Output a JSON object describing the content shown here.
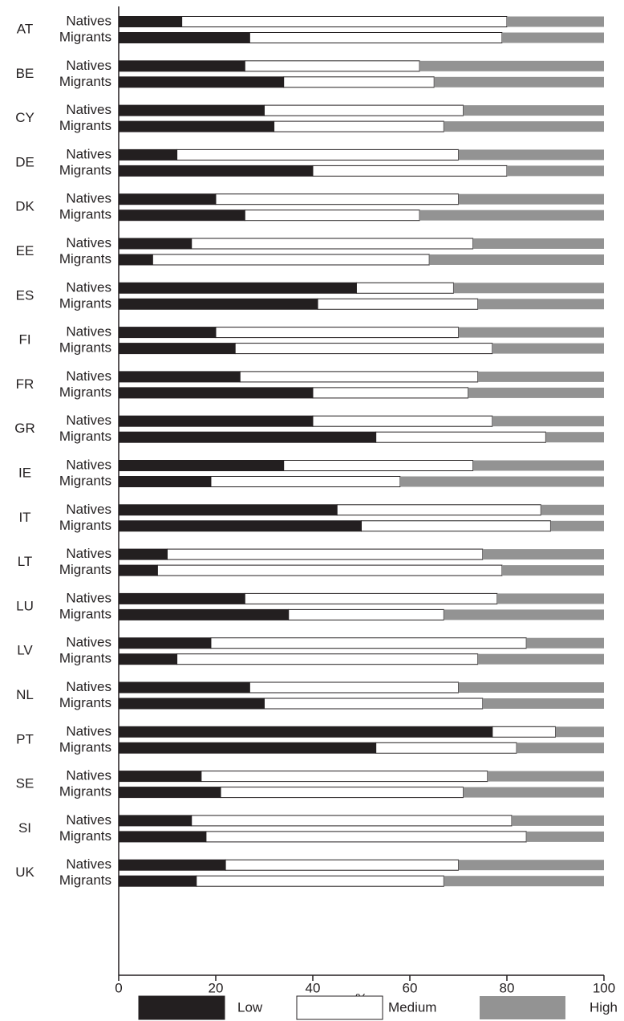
{
  "chart_data": {
    "type": "stacked-barh",
    "countries": [
      "AT",
      "BE",
      "CY",
      "DE",
      "DK",
      "EE",
      "ES",
      "FI",
      "FR",
      "GR",
      "IE",
      "IT",
      "LT",
      "LU",
      "LV",
      "NL",
      "PT",
      "SE",
      "SI",
      "UK"
    ],
    "categories": [
      "Natives",
      "Migrants",
      "Natives",
      "Migrants",
      "Natives",
      "Migrants",
      "Natives",
      "Migrants",
      "Natives",
      "Migrants",
      "Natives",
      "Migrants",
      "Natives",
      "Migrants",
      "Natives",
      "Migrants",
      "Natives",
      "Migrants",
      "Natives",
      "Migrants",
      "Natives",
      "Migrants",
      "Natives",
      "Migrants",
      "Natives",
      "Migrants",
      "Natives",
      "Migrants",
      "Natives",
      "Migrants",
      "Natives",
      "Migrants",
      "Natives",
      "Migrants",
      "Natives",
      "Migrants",
      "Natives",
      "Migrants",
      "Natives",
      "Migrants"
    ],
    "series": [
      {
        "name": "Low",
        "color": "#231f20",
        "values": [
          13,
          27,
          26,
          34,
          30,
          32,
          12,
          40,
          20,
          26,
          15,
          7,
          49,
          41,
          20,
          24,
          25,
          40,
          40,
          53,
          34,
          19,
          45,
          50,
          10,
          8,
          26,
          35,
          19,
          12,
          27,
          30,
          77,
          53,
          17,
          21,
          15,
          18,
          22,
          16
        ]
      },
      {
        "name": "Medium",
        "color": "#ffffff",
        "values": [
          67,
          52,
          36,
          31,
          41,
          35,
          58,
          40,
          50,
          36,
          58,
          57,
          20,
          33,
          50,
          53,
          49,
          32,
          37,
          35,
          39,
          39,
          42,
          39,
          65,
          71,
          52,
          32,
          65,
          62,
          43,
          45,
          13,
          29,
          59,
          50,
          66,
          66,
          48,
          51
        ]
      },
      {
        "name": "High",
        "color": "#939393",
        "values": [
          20,
          21,
          38,
          35,
          29,
          33,
          30,
          20,
          30,
          38,
          27,
          36,
          31,
          26,
          30,
          23,
          26,
          28,
          23,
          12,
          27,
          42,
          13,
          11,
          25,
          21,
          22,
          33,
          16,
          26,
          30,
          25,
          10,
          18,
          24,
          29,
          19,
          16,
          30,
          33
        ]
      }
    ],
    "xlabel": "%",
    "xlim": [
      0,
      100
    ],
    "xticks": [
      0,
      20,
      40,
      60,
      80,
      100
    ]
  }
}
